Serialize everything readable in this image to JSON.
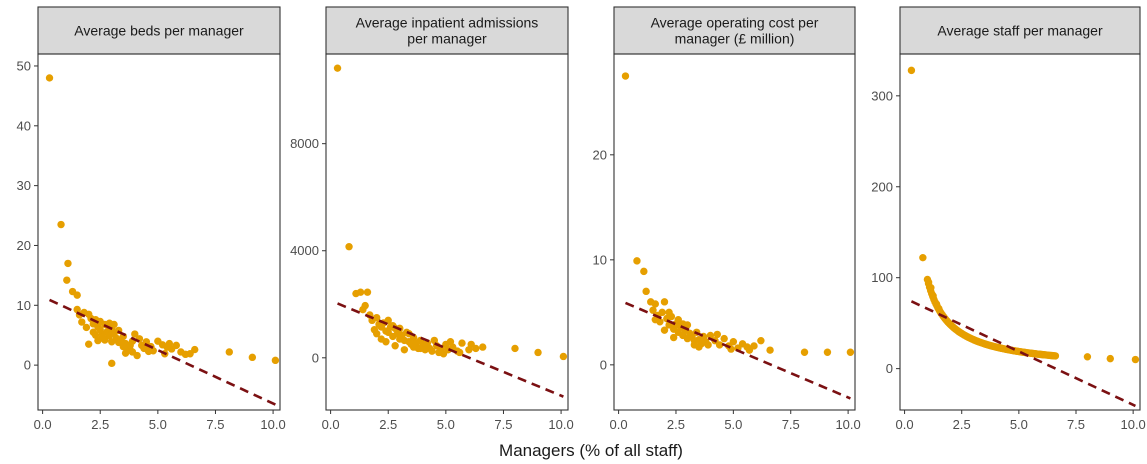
{
  "chart_data": {
    "type": "scatter",
    "xlabel": "Managers (% of all staff)",
    "x_ticks": [
      "0.0",
      "2.5",
      "5.0",
      "7.5",
      "10.0"
    ],
    "xlim": [
      -0.2,
      10.3
    ],
    "point_color": "#E69F00",
    "trend_color": "#7B1012",
    "panels": [
      {
        "title": [
          "Average beds per manager"
        ],
        "ylim": [
          -7.5,
          52
        ],
        "y_ticks": [
          0,
          10,
          20,
          30,
          40,
          50
        ],
        "y_tick_labels": [
          "0",
          "10",
          "20",
          "30",
          "40",
          "50"
        ],
        "trend": {
          "x": [
            0.3,
            10.1
          ],
          "y": [
            10.9,
            -6.6
          ]
        },
        "points": [
          [
            0.3,
            48
          ],
          [
            0.8,
            23.5
          ],
          [
            1.1,
            17
          ],
          [
            1.05,
            14.2
          ],
          [
            1.3,
            12.3
          ],
          [
            1.5,
            11.7
          ],
          [
            1.5,
            9.3
          ],
          [
            1.6,
            8.4
          ],
          [
            1.8,
            8.8
          ],
          [
            2.0,
            8.5
          ],
          [
            2.1,
            7.8
          ],
          [
            2.2,
            6.9
          ],
          [
            2.3,
            7.6
          ],
          [
            2.4,
            6.4
          ],
          [
            2.5,
            5.9
          ],
          [
            2.6,
            5.2
          ],
          [
            2.7,
            6.8
          ],
          [
            2.8,
            5.6
          ],
          [
            2.9,
            4.9
          ],
          [
            3.0,
            6.1
          ],
          [
            3.1,
            5.3
          ],
          [
            3.2,
            4.5
          ],
          [
            3.3,
            3.8
          ],
          [
            3.4,
            4.2
          ],
          [
            3.5,
            3.1
          ],
          [
            3.6,
            3.6
          ],
          [
            3.7,
            2.9
          ],
          [
            3.8,
            2.5
          ],
          [
            3.9,
            4.0
          ],
          [
            4.0,
            5.2
          ],
          [
            4.2,
            4.4
          ],
          [
            4.3,
            3.3
          ],
          [
            4.5,
            3.9
          ],
          [
            4.7,
            3.1
          ],
          [
            4.8,
            2.4
          ],
          [
            5.0,
            4.0
          ],
          [
            5.2,
            3.4
          ],
          [
            5.4,
            3.0
          ],
          [
            5.6,
            2.7
          ],
          [
            5.8,
            3.3
          ],
          [
            6.0,
            2.2
          ],
          [
            6.2,
            1.8
          ],
          [
            6.6,
            2.6
          ],
          [
            8.1,
            2.2
          ],
          [
            9.1,
            1.3
          ],
          [
            10.1,
            0.8
          ],
          [
            2.0,
            3.5
          ],
          [
            3.0,
            0.3
          ],
          [
            2.3,
            5.0
          ],
          [
            2.7,
            4.2
          ],
          [
            3.6,
            2.0
          ],
          [
            4.1,
            1.6
          ],
          [
            2.5,
            7.3
          ],
          [
            3.1,
            6.8
          ],
          [
            1.7,
            7.2
          ],
          [
            2.9,
            7.0
          ],
          [
            3.3,
            5.8
          ],
          [
            4.6,
            2.3
          ],
          [
            5.3,
            1.9
          ],
          [
            3.8,
            3.3
          ],
          [
            2.2,
            5.5
          ],
          [
            2.6,
            4.7
          ],
          [
            3.5,
            4.8
          ],
          [
            4.4,
            2.8
          ],
          [
            5.5,
            3.6
          ],
          [
            6.4,
            1.9
          ],
          [
            1.9,
            6.3
          ],
          [
            2.4,
            4.1
          ],
          [
            3.0,
            3.9
          ],
          [
            3.9,
            2.2
          ]
        ]
      },
      {
        "title": [
          "Average inpatient admissions",
          "per manager"
        ],
        "ylim": [
          -1950,
          11350
        ],
        "y_ticks": [
          0,
          4000,
          8000
        ],
        "y_tick_labels": [
          "0",
          "4000",
          "8000"
        ],
        "trend": {
          "x": [
            0.3,
            10.1
          ],
          "y": [
            2030,
            -1450
          ]
        },
        "points": [
          [
            0.3,
            10820
          ],
          [
            0.8,
            4150
          ],
          [
            1.1,
            2400
          ],
          [
            1.3,
            2450
          ],
          [
            1.6,
            2450
          ],
          [
            1.5,
            1950
          ],
          [
            1.4,
            1800
          ],
          [
            1.7,
            1600
          ],
          [
            1.8,
            1400
          ],
          [
            2.0,
            1500
          ],
          [
            2.1,
            1250
          ],
          [
            2.2,
            1150
          ],
          [
            2.3,
            1300
          ],
          [
            2.4,
            1000
          ],
          [
            2.5,
            950
          ],
          [
            2.6,
            1150
          ],
          [
            2.7,
            800
          ],
          [
            2.8,
            1100
          ],
          [
            2.9,
            900
          ],
          [
            3.0,
            700
          ],
          [
            3.1,
            850
          ],
          [
            3.2,
            650
          ],
          [
            3.3,
            950
          ],
          [
            3.4,
            600
          ],
          [
            3.5,
            500
          ],
          [
            3.6,
            750
          ],
          [
            3.7,
            550
          ],
          [
            3.8,
            350
          ],
          [
            3.9,
            650
          ],
          [
            4.0,
            500
          ],
          [
            4.1,
            300
          ],
          [
            4.2,
            550
          ],
          [
            4.3,
            350
          ],
          [
            4.4,
            250
          ],
          [
            4.6,
            450
          ],
          [
            4.7,
            200
          ],
          [
            4.8,
            350
          ],
          [
            5.0,
            500
          ],
          [
            5.1,
            300
          ],
          [
            5.3,
            400
          ],
          [
            5.5,
            250
          ],
          [
            5.7,
            550
          ],
          [
            6.0,
            300
          ],
          [
            6.3,
            350
          ],
          [
            6.6,
            400
          ],
          [
            8.0,
            350
          ],
          [
            9.0,
            200
          ],
          [
            10.1,
            50
          ],
          [
            2.0,
            900
          ],
          [
            2.5,
            1400
          ],
          [
            3.0,
            1100
          ],
          [
            2.2,
            700
          ],
          [
            3.4,
            900
          ],
          [
            1.9,
            1050
          ],
          [
            2.7,
            1200
          ],
          [
            3.6,
            400
          ],
          [
            4.5,
            650
          ],
          [
            5.2,
            600
          ],
          [
            2.4,
            600
          ],
          [
            3.2,
            300
          ],
          [
            4.9,
            150
          ],
          [
            6.1,
            500
          ],
          [
            2.8,
            450
          ],
          [
            3.9,
            350
          ],
          [
            5.6,
            200
          ]
        ]
      },
      {
        "title": [
          "Average operating cost per",
          "manager (£ million)"
        ],
        "ylim": [
          -4.3,
          29.6
        ],
        "y_ticks": [
          0,
          10,
          20
        ],
        "y_tick_labels": [
          "0",
          "10",
          "20"
        ],
        "trend": {
          "x": [
            0.3,
            10.1
          ],
          "y": [
            5.9,
            -3.2
          ]
        },
        "points": [
          [
            0.3,
            27.5
          ],
          [
            0.8,
            9.9
          ],
          [
            1.1,
            8.9
          ],
          [
            1.2,
            7.0
          ],
          [
            1.4,
            6.0
          ],
          [
            1.6,
            5.8
          ],
          [
            1.5,
            5.2
          ],
          [
            1.7,
            4.7
          ],
          [
            1.8,
            4.1
          ],
          [
            1.9,
            5.0
          ],
          [
            2.0,
            6.0
          ],
          [
            2.1,
            4.4
          ],
          [
            2.2,
            3.8
          ],
          [
            2.3,
            4.6
          ],
          [
            2.4,
            3.4
          ],
          [
            2.5,
            3.9
          ],
          [
            2.6,
            3.1
          ],
          [
            2.7,
            3.6
          ],
          [
            2.8,
            2.8
          ],
          [
            2.9,
            3.3
          ],
          [
            3.0,
            2.5
          ],
          [
            3.1,
            3.0
          ],
          [
            3.2,
            2.7
          ],
          [
            3.3,
            2.3
          ],
          [
            3.4,
            3.1
          ],
          [
            3.5,
            2.4
          ],
          [
            3.6,
            2.0
          ],
          [
            3.7,
            2.7
          ],
          [
            3.8,
            2.2
          ],
          [
            3.9,
            1.9
          ],
          [
            4.0,
            2.8
          ],
          [
            4.2,
            2.3
          ],
          [
            4.4,
            1.9
          ],
          [
            4.6,
            2.5
          ],
          [
            4.8,
            1.8
          ],
          [
            5.0,
            2.2
          ],
          [
            5.2,
            1.6
          ],
          [
            5.4,
            2.0
          ],
          [
            5.6,
            1.7
          ],
          [
            5.9,
            1.8
          ],
          [
            6.2,
            2.3
          ],
          [
            6.6,
            1.4
          ],
          [
            8.1,
            1.2
          ],
          [
            9.1,
            1.2
          ],
          [
            10.1,
            1.2
          ],
          [
            2.2,
            5.0
          ],
          [
            2.0,
            3.3
          ],
          [
            3.0,
            3.8
          ],
          [
            2.6,
            4.3
          ],
          [
            3.5,
            1.7
          ],
          [
            4.3,
            2.9
          ],
          [
            2.4,
            2.6
          ],
          [
            3.3,
            1.9
          ],
          [
            1.6,
            4.3
          ],
          [
            4.9,
            1.5
          ],
          [
            5.7,
            1.4
          ],
          [
            2.8,
            3.9
          ],
          [
            3.7,
            2.4
          ]
        ]
      },
      {
        "title": [
          "Average staff per manager"
        ],
        "ylim": [
          -45.5,
          346
        ],
        "y_ticks": [
          0,
          100,
          200,
          300
        ],
        "y_tick_labels": [
          "0",
          "100",
          "200",
          "300"
        ],
        "trend": {
          "x": [
            0.3,
            10.1
          ],
          "y": [
            74,
            -41
          ]
        },
        "curve": {
          "numerator": 99,
          "offset": -1,
          "x_from": 1.0,
          "x_to": 6.6,
          "count": 120
        },
        "points": [
          [
            0.3,
            328
          ],
          [
            0.8,
            122
          ],
          [
            1.05,
            95
          ],
          [
            1.15,
            89
          ],
          [
            1.25,
            80
          ],
          [
            1.4,
            71
          ],
          [
            1.5,
            66
          ],
          [
            8.0,
            13
          ],
          [
            9.0,
            11
          ],
          [
            10.1,
            10
          ]
        ]
      }
    ]
  }
}
